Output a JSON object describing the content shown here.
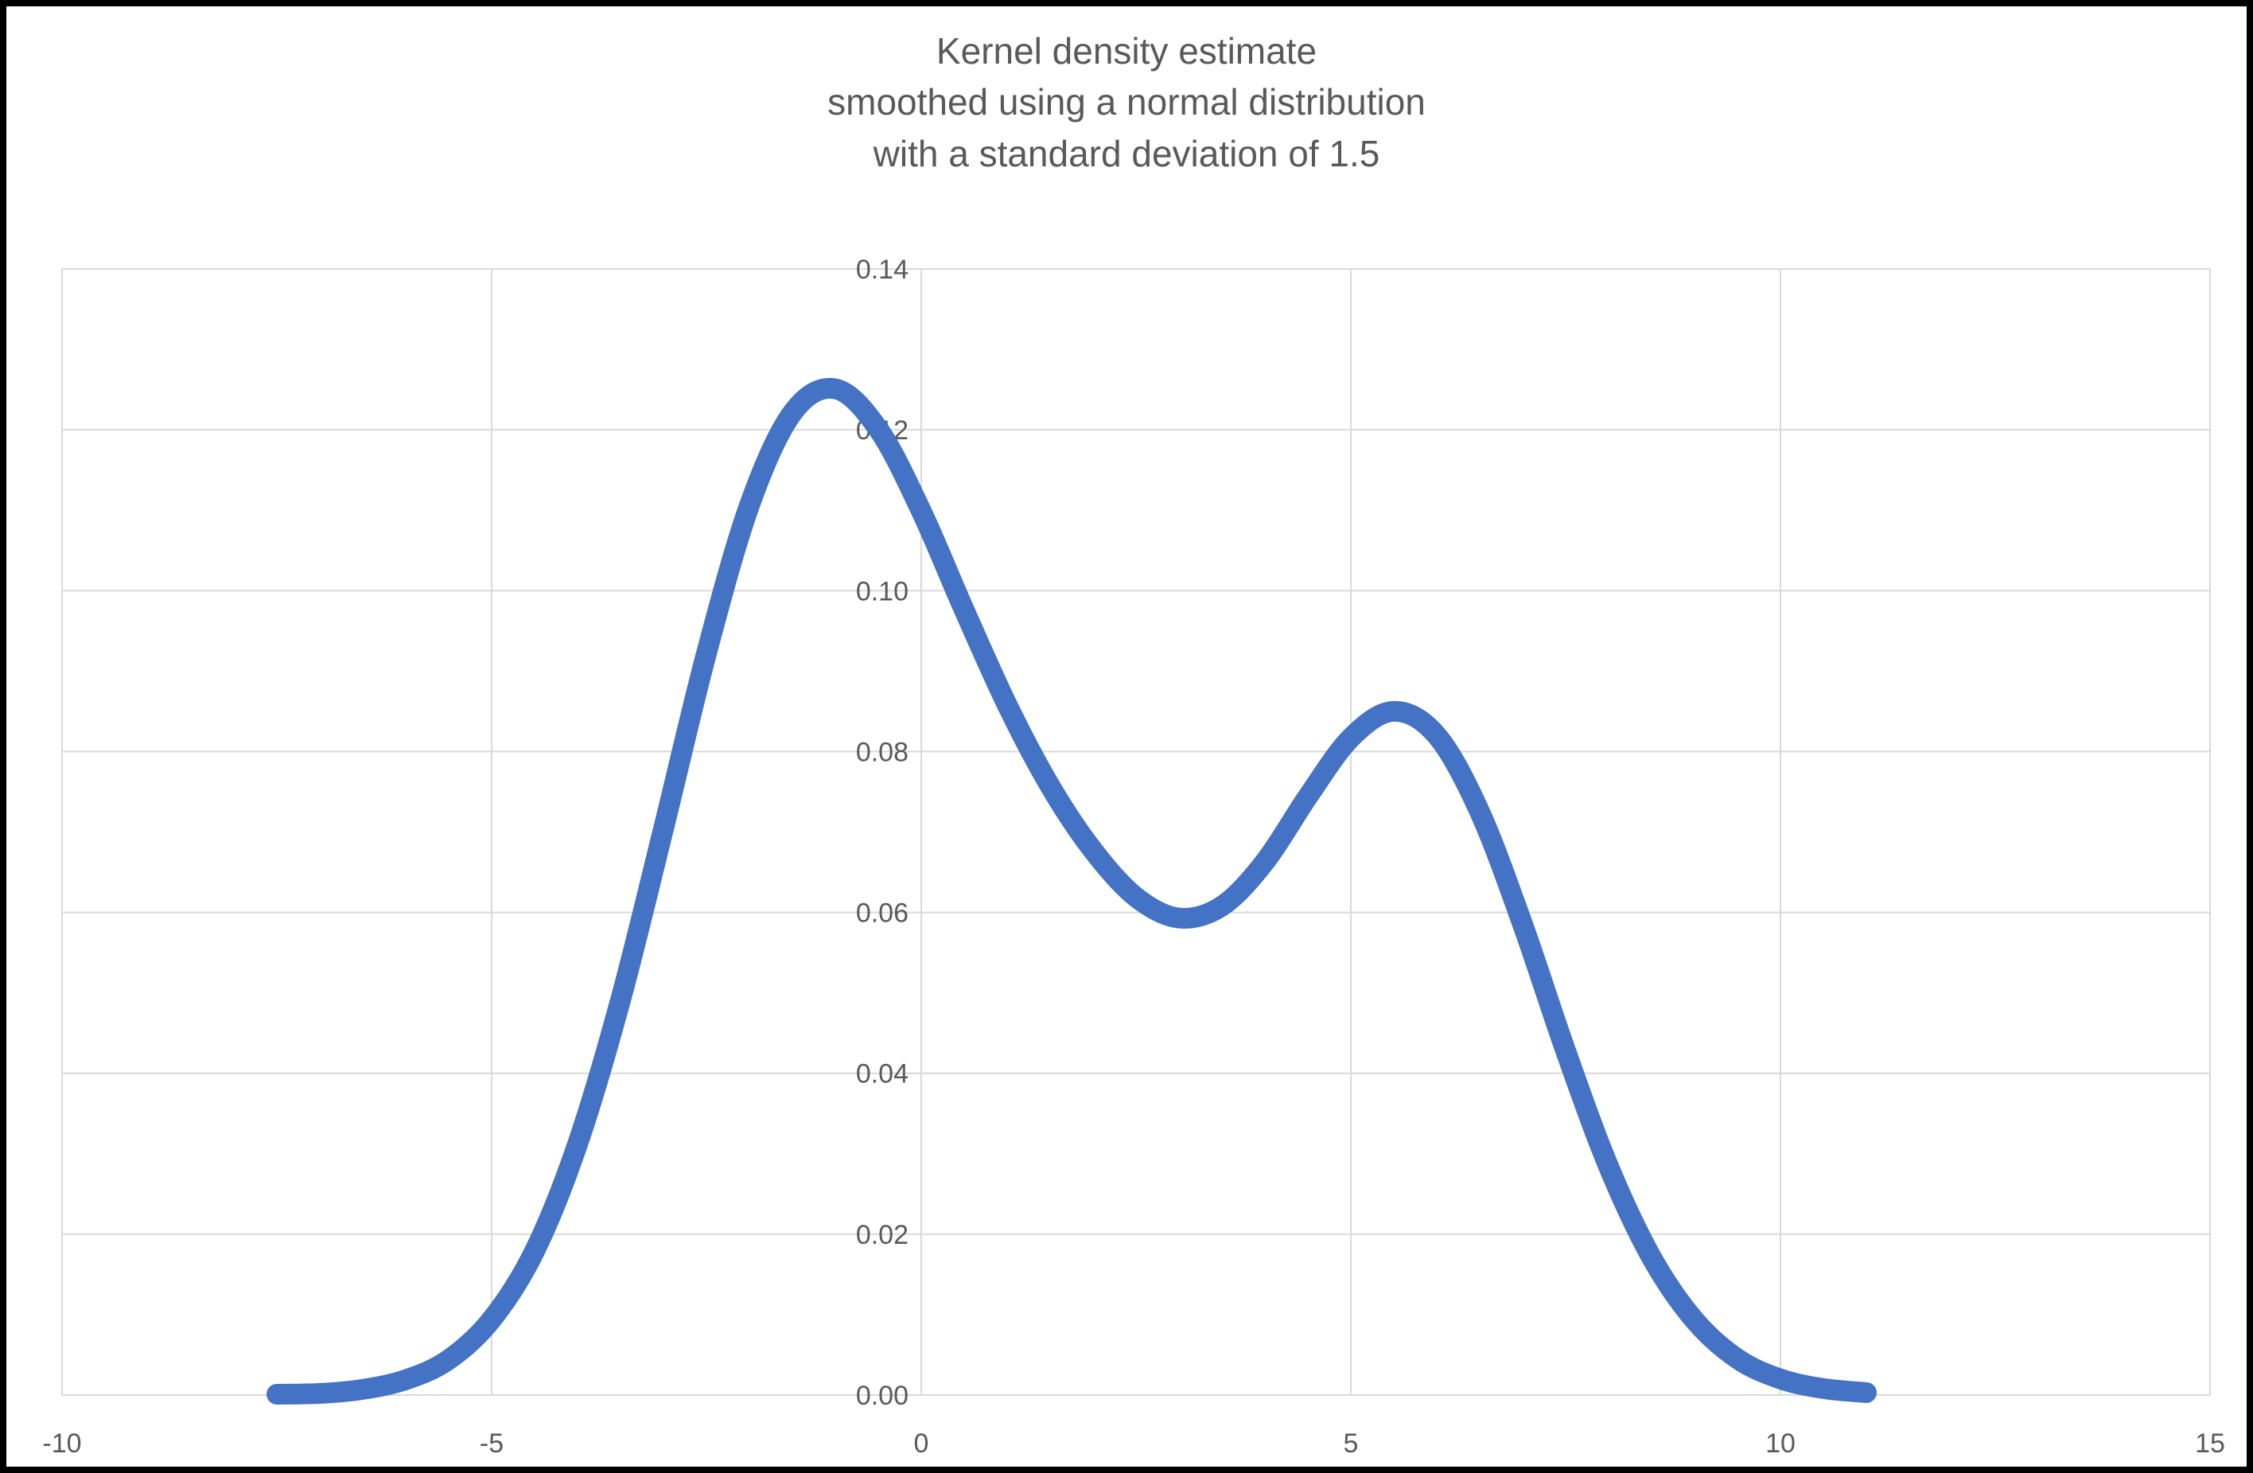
{
  "page": {
    "background_color": "#ffffff",
    "frame_border_color": "#000000"
  },
  "chart_data": {
    "type": "line",
    "title_lines": [
      "Kernel density estimate",
      "smoothed using a normal distribution",
      "with a standard deviation of 1.5"
    ],
    "title_color": "#595959",
    "axis_label_color": "#595959",
    "gridline_color": "#d9d9d9",
    "plot_background": "#ffffff",
    "grid": true,
    "legend": "none",
    "xlim": [
      -10,
      15
    ],
    "ylim": [
      0,
      0.14
    ],
    "x_tick_values": [
      -10,
      -5,
      0,
      5,
      10,
      15
    ],
    "x_tick_labels": [
      "-10",
      "-5",
      "0",
      "5",
      "10",
      "15"
    ],
    "y_tick_values": [
      0,
      0.02,
      0.04,
      0.06,
      0.08,
      0.1,
      0.12,
      0.14
    ],
    "y_tick_labels": [
      "0.00",
      "0.02",
      "0.04",
      "0.06",
      "0.08",
      "0.10",
      "0.12",
      "0.14"
    ],
    "y_axis_position_x": 0,
    "series": [
      {
        "name": "Kernel density estimate",
        "color": "#4472C4",
        "stroke_width": 26,
        "x": [
          -7.5,
          -7,
          -6.5,
          -6,
          -5.5,
          -5,
          -4.5,
          -4,
          -3.5,
          -3,
          -2.5,
          -2,
          -1.5,
          -1,
          -0.5,
          0,
          0.5,
          1,
          1.5,
          2,
          2.5,
          3,
          3.5,
          4,
          4.5,
          5,
          5.5,
          6,
          6.5,
          7,
          7.5,
          8,
          8.5,
          9,
          9.5,
          10,
          10.5,
          11
        ],
        "y": [
          0.0001,
          0.0002,
          0.0007,
          0.0019,
          0.0044,
          0.0094,
          0.0179,
          0.0312,
          0.0491,
          0.0704,
          0.0922,
          0.1106,
          0.1221,
          0.1251,
          0.1201,
          0.1099,
          0.0976,
          0.0858,
          0.0757,
          0.0677,
          0.0619,
          0.0593,
          0.0608,
          0.0663,
          0.0744,
          0.0817,
          0.085,
          0.082,
          0.0725,
          0.0585,
          0.0428,
          0.0284,
          0.0171,
          0.0093,
          0.0045,
          0.002,
          0.0008,
          0.0003
        ],
        "annotations": {
          "first_peak": {
            "x": -1,
            "y": 0.125
          },
          "valley": {
            "x": 3,
            "y": 0.059
          },
          "second_peak": {
            "x": 5.5,
            "y": 0.085
          }
        }
      }
    ]
  }
}
